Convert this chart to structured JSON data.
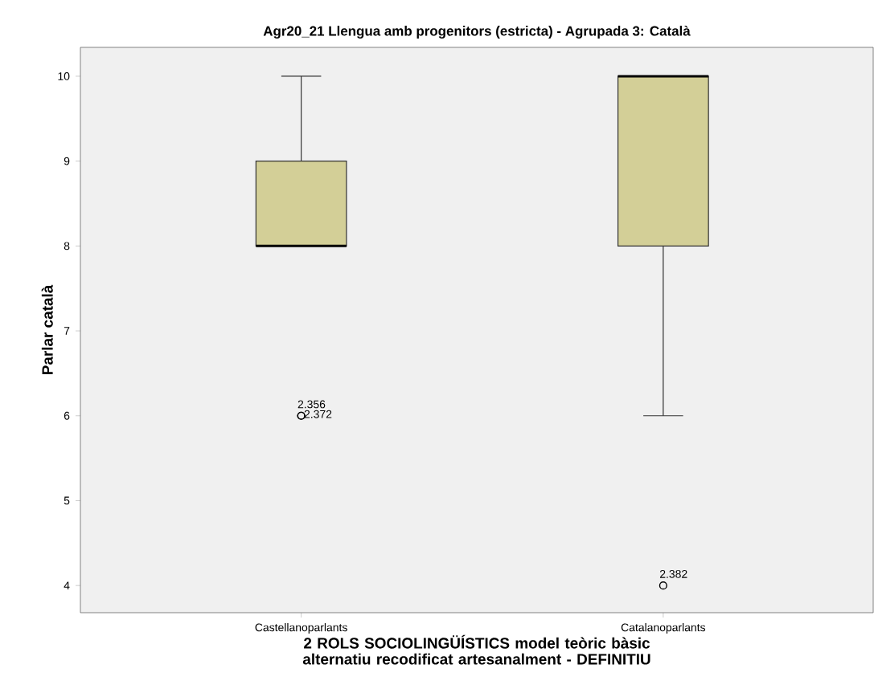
{
  "chart_data": {
    "type": "box",
    "title": "Agr20_21 Llengua amb progenitors (estricta) - Agrupada 3: Català",
    "xlabel": "2 ROLS SOCIOLINGÜÍSTICS model teòric bàsic alternatiu recodificat artesanalment - DEFINITIU",
    "ylabel": "Parlar català",
    "categories": [
      "Castellanoparlants",
      "Catalanoparlants"
    ],
    "color": "#d3cf97",
    "marker": "circle",
    "boxes": [
      {
        "low": 8,
        "q1": 8,
        "median": 8,
        "q3": 9,
        "high": 10,
        "outliers": [
          6,
          6
        ]
      },
      {
        "low": 6,
        "q1": 8,
        "median": 10,
        "q3": 10,
        "high": 10,
        "outliers": [
          4
        ]
      }
    ],
    "ylim": [
      3.68,
      10.34
    ],
    "yticks": [
      4,
      5,
      6,
      7,
      8,
      9,
      10
    ],
    "annotations": [
      "2.356",
      "2.372",
      "2.382"
    ]
  }
}
